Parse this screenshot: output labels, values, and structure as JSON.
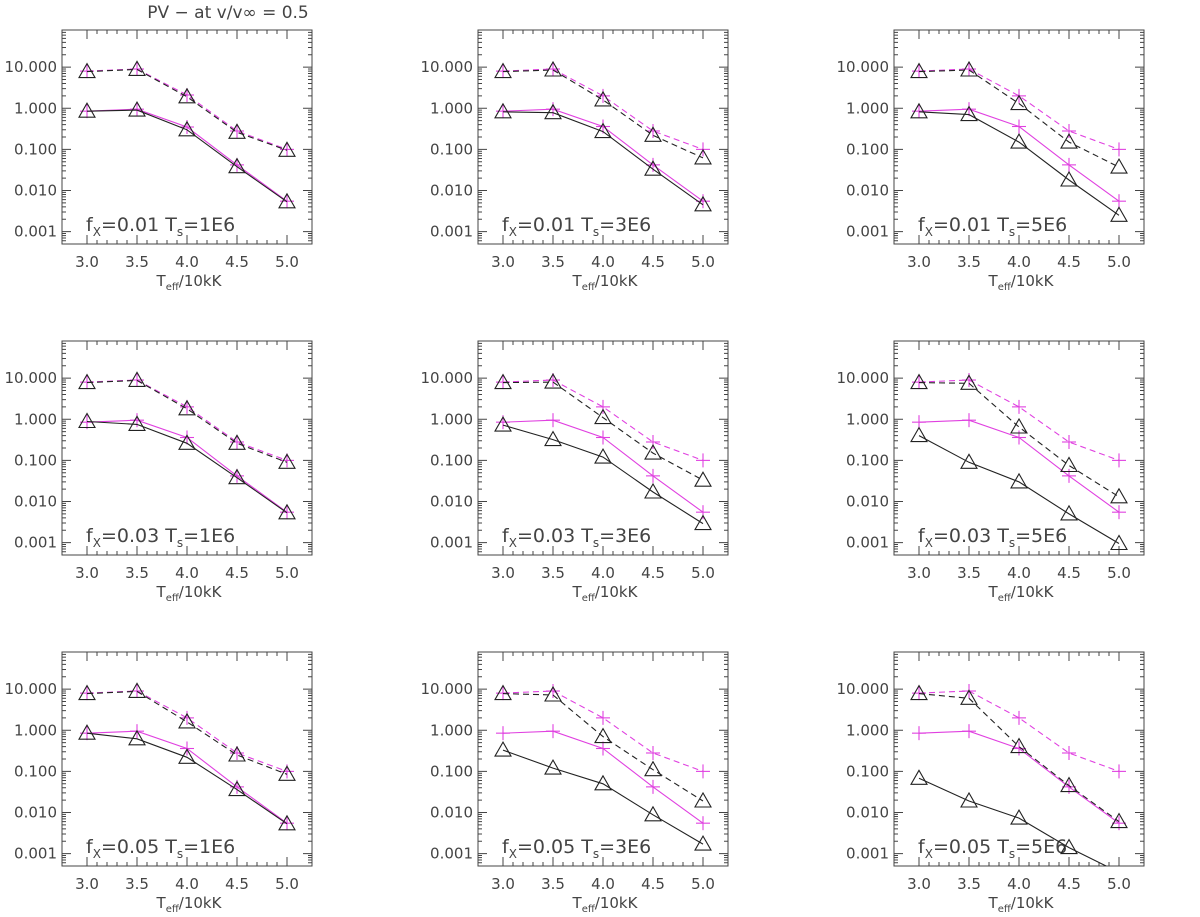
{
  "figure_title": "PV − at v/v∞ = 0.5",
  "xlabel_main": "T",
  "xlabel_sub": "eff",
  "xlabel_rest": "/10kK",
  "colors": {
    "magenta": "#e040e0",
    "black": "#222222",
    "axis": "#444444"
  },
  "chart_data": [
    {
      "type": "line",
      "fx": "0.01",
      "Ts": "1E6",
      "x": [
        3.0,
        3.5,
        4.0,
        4.5,
        5.0
      ],
      "xlim": [
        2.75,
        5.25
      ],
      "ylim": [
        0.0005,
        80
      ],
      "yscale": "log",
      "xticks": [
        "3.0",
        "3.5",
        "4.0",
        "4.5",
        "5.0"
      ],
      "yticks": [
        "0.001",
        "0.010",
        "0.100",
        "1.000",
        "10.000"
      ],
      "series": [
        {
          "name": "magenta-solid",
          "values": [
            0.85,
            0.95,
            0.35,
            0.042,
            0.0055
          ]
        },
        {
          "name": "magenta-dashed",
          "values": [
            8.0,
            9.0,
            2.1,
            0.28,
            0.1
          ]
        },
        {
          "name": "black-solid",
          "values": [
            0.85,
            0.9,
            0.3,
            0.038,
            0.0053
          ]
        },
        {
          "name": "black-dashed",
          "values": [
            7.8,
            8.8,
            1.9,
            0.26,
            0.095
          ]
        }
      ]
    },
    {
      "type": "line",
      "fx": "0.01",
      "Ts": "3E6",
      "x": [
        3.0,
        3.5,
        4.0,
        4.5,
        5.0
      ],
      "xlim": [
        2.75,
        5.25
      ],
      "ylim": [
        0.0005,
        80
      ],
      "yscale": "log",
      "xticks": [
        "3.0",
        "3.5",
        "4.0",
        "4.5",
        "5.0"
      ],
      "yticks": [
        "0.001",
        "0.010",
        "0.100",
        "1.000",
        "10.000"
      ],
      "series": [
        {
          "name": "magenta-solid",
          "values": [
            0.85,
            0.95,
            0.36,
            0.042,
            0.0055
          ]
        },
        {
          "name": "magenta-dashed",
          "values": [
            8.0,
            9.0,
            2.0,
            0.28,
            0.1
          ]
        },
        {
          "name": "black-solid",
          "values": [
            0.82,
            0.78,
            0.27,
            0.033,
            0.0045
          ]
        },
        {
          "name": "black-dashed",
          "values": [
            7.8,
            8.5,
            1.6,
            0.22,
            0.062
          ]
        }
      ]
    },
    {
      "type": "line",
      "fx": "0.01",
      "Ts": "5E6",
      "x": [
        3.0,
        3.5,
        4.0,
        4.5,
        5.0
      ],
      "xlim": [
        2.75,
        5.25
      ],
      "ylim": [
        0.0005,
        80
      ],
      "yscale": "log",
      "xticks": [
        "3.0",
        "3.5",
        "4.0",
        "4.5",
        "5.0"
      ],
      "yticks": [
        "0.001",
        "0.010",
        "0.100",
        "1.000",
        "10.000"
      ],
      "series": [
        {
          "name": "magenta-solid",
          "values": [
            0.85,
            0.95,
            0.36,
            0.042,
            0.0055
          ]
        },
        {
          "name": "magenta-dashed",
          "values": [
            8.0,
            9.0,
            2.0,
            0.28,
            0.1
          ]
        },
        {
          "name": "black-solid",
          "values": [
            0.82,
            0.7,
            0.15,
            0.018,
            0.0025
          ]
        },
        {
          "name": "black-dashed",
          "values": [
            7.8,
            8.5,
            1.3,
            0.15,
            0.037
          ]
        }
      ]
    },
    {
      "type": "line",
      "fx": "0.03",
      "Ts": "1E6",
      "x": [
        3.0,
        3.5,
        4.0,
        4.5,
        5.0
      ],
      "xlim": [
        2.75,
        5.25
      ],
      "ylim": [
        0.0005,
        80
      ],
      "yscale": "log",
      "xticks": [
        "3.0",
        "3.5",
        "4.0",
        "4.5",
        "5.0"
      ],
      "yticks": [
        "0.001",
        "0.010",
        "0.100",
        "1.000",
        "10.000"
      ],
      "series": [
        {
          "name": "magenta-solid",
          "values": [
            0.85,
            0.95,
            0.36,
            0.042,
            0.0055
          ]
        },
        {
          "name": "magenta-dashed",
          "values": [
            8.0,
            9.0,
            2.0,
            0.28,
            0.1
          ]
        },
        {
          "name": "black-solid",
          "values": [
            0.88,
            0.75,
            0.26,
            0.038,
            0.0053
          ]
        },
        {
          "name": "black-dashed",
          "values": [
            7.8,
            8.8,
            1.8,
            0.26,
            0.09
          ]
        }
      ]
    },
    {
      "type": "line",
      "fx": "0.03",
      "Ts": "3E6",
      "x": [
        3.0,
        3.5,
        4.0,
        4.5,
        5.0
      ],
      "xlim": [
        2.75,
        5.25
      ],
      "ylim": [
        0.0005,
        80
      ],
      "yscale": "log",
      "xticks": [
        "3.0",
        "3.5",
        "4.0",
        "4.5",
        "5.0"
      ],
      "yticks": [
        "0.001",
        "0.010",
        "0.100",
        "1.000",
        "10.000"
      ],
      "series": [
        {
          "name": "magenta-solid",
          "values": [
            0.85,
            0.95,
            0.36,
            0.042,
            0.0055
          ]
        },
        {
          "name": "magenta-dashed",
          "values": [
            8.0,
            9.0,
            2.0,
            0.28,
            0.1
          ]
        },
        {
          "name": "black-solid",
          "values": [
            0.72,
            0.32,
            0.12,
            0.017,
            0.0029
          ]
        },
        {
          "name": "black-dashed",
          "values": [
            7.8,
            8.0,
            1.1,
            0.15,
            0.033
          ]
        }
      ]
    },
    {
      "type": "line",
      "fx": "0.03",
      "Ts": "5E6",
      "x": [
        3.0,
        3.5,
        4.0,
        4.5,
        5.0
      ],
      "xlim": [
        2.75,
        5.25
      ],
      "ylim": [
        0.0005,
        80
      ],
      "yscale": "log",
      "xticks": [
        "3.0",
        "3.5",
        "4.0",
        "4.5",
        "5.0"
      ],
      "yticks": [
        "0.001",
        "0.010",
        "0.100",
        "1.000",
        "10.000"
      ],
      "series": [
        {
          "name": "magenta-solid",
          "values": [
            0.85,
            0.95,
            0.36,
            0.042,
            0.0055
          ]
        },
        {
          "name": "magenta-dashed",
          "values": [
            8.0,
            9.0,
            2.0,
            0.28,
            0.1
          ]
        },
        {
          "name": "black-solid",
          "values": [
            0.4,
            0.09,
            0.03,
            0.005,
            0.00095
          ]
        },
        {
          "name": "black-dashed",
          "values": [
            7.8,
            7.5,
            0.65,
            0.075,
            0.013
          ]
        }
      ]
    },
    {
      "type": "line",
      "fx": "0.05",
      "Ts": "1E6",
      "x": [
        3.0,
        3.5,
        4.0,
        4.5,
        5.0
      ],
      "xlim": [
        2.75,
        5.25
      ],
      "ylim": [
        0.0005,
        80
      ],
      "yscale": "log",
      "xticks": [
        "3.0",
        "3.5",
        "4.0",
        "4.5",
        "5.0"
      ],
      "yticks": [
        "0.001",
        "0.010",
        "0.100",
        "1.000",
        "10.000"
      ],
      "series": [
        {
          "name": "magenta-solid",
          "values": [
            0.85,
            0.95,
            0.36,
            0.042,
            0.0055
          ]
        },
        {
          "name": "magenta-dashed",
          "values": [
            8.0,
            9.0,
            2.0,
            0.28,
            0.1
          ]
        },
        {
          "name": "black-solid",
          "values": [
            0.85,
            0.62,
            0.22,
            0.036,
            0.0053
          ]
        },
        {
          "name": "black-dashed",
          "values": [
            7.8,
            8.8,
            1.6,
            0.25,
            0.085
          ]
        }
      ]
    },
    {
      "type": "line",
      "fx": "0.05",
      "Ts": "3E6",
      "x": [
        3.0,
        3.5,
        4.0,
        4.5,
        5.0
      ],
      "xlim": [
        2.75,
        5.25
      ],
      "ylim": [
        0.0005,
        80
      ],
      "yscale": "log",
      "xticks": [
        "3.0",
        "3.5",
        "4.0",
        "4.5",
        "5.0"
      ],
      "yticks": [
        "0.001",
        "0.010",
        "0.100",
        "1.000",
        "10.000"
      ],
      "series": [
        {
          "name": "magenta-solid",
          "values": [
            0.85,
            0.95,
            0.36,
            0.042,
            0.0055
          ]
        },
        {
          "name": "magenta-dashed",
          "values": [
            8.0,
            9.0,
            2.0,
            0.28,
            0.1
          ]
        },
        {
          "name": "black-solid",
          "values": [
            0.33,
            0.12,
            0.05,
            0.0088,
            0.0017
          ]
        },
        {
          "name": "black-dashed",
          "values": [
            7.8,
            7.2,
            0.7,
            0.11,
            0.019
          ]
        }
      ]
    },
    {
      "type": "line",
      "fx": "0.05",
      "Ts": "5E6",
      "x": [
        3.0,
        3.5,
        4.0,
        4.5,
        5.0
      ],
      "xlim": [
        2.75,
        5.25
      ],
      "ylim": [
        0.0005,
        80
      ],
      "yscale": "log",
      "xticks": [
        "3.0",
        "3.5",
        "4.0",
        "4.5",
        "5.0"
      ],
      "yticks": [
        "0.001",
        "0.010",
        "0.100",
        "1.000",
        "10.000"
      ],
      "series": [
        {
          "name": "magenta-solid",
          "values": [
            0.85,
            0.95,
            0.36,
            0.042,
            0.0055
          ]
        },
        {
          "name": "magenta-dashed",
          "values": [
            8.0,
            9.0,
            2.0,
            0.28,
            0.1
          ]
        },
        {
          "name": "black-solid",
          "values": [
            0.068,
            0.019,
            0.0073,
            0.0014,
            0.00035
          ]
        },
        {
          "name": "black-dashed",
          "values": [
            7.8,
            6.0,
            0.4,
            0.045,
            0.006
          ]
        }
      ]
    }
  ]
}
